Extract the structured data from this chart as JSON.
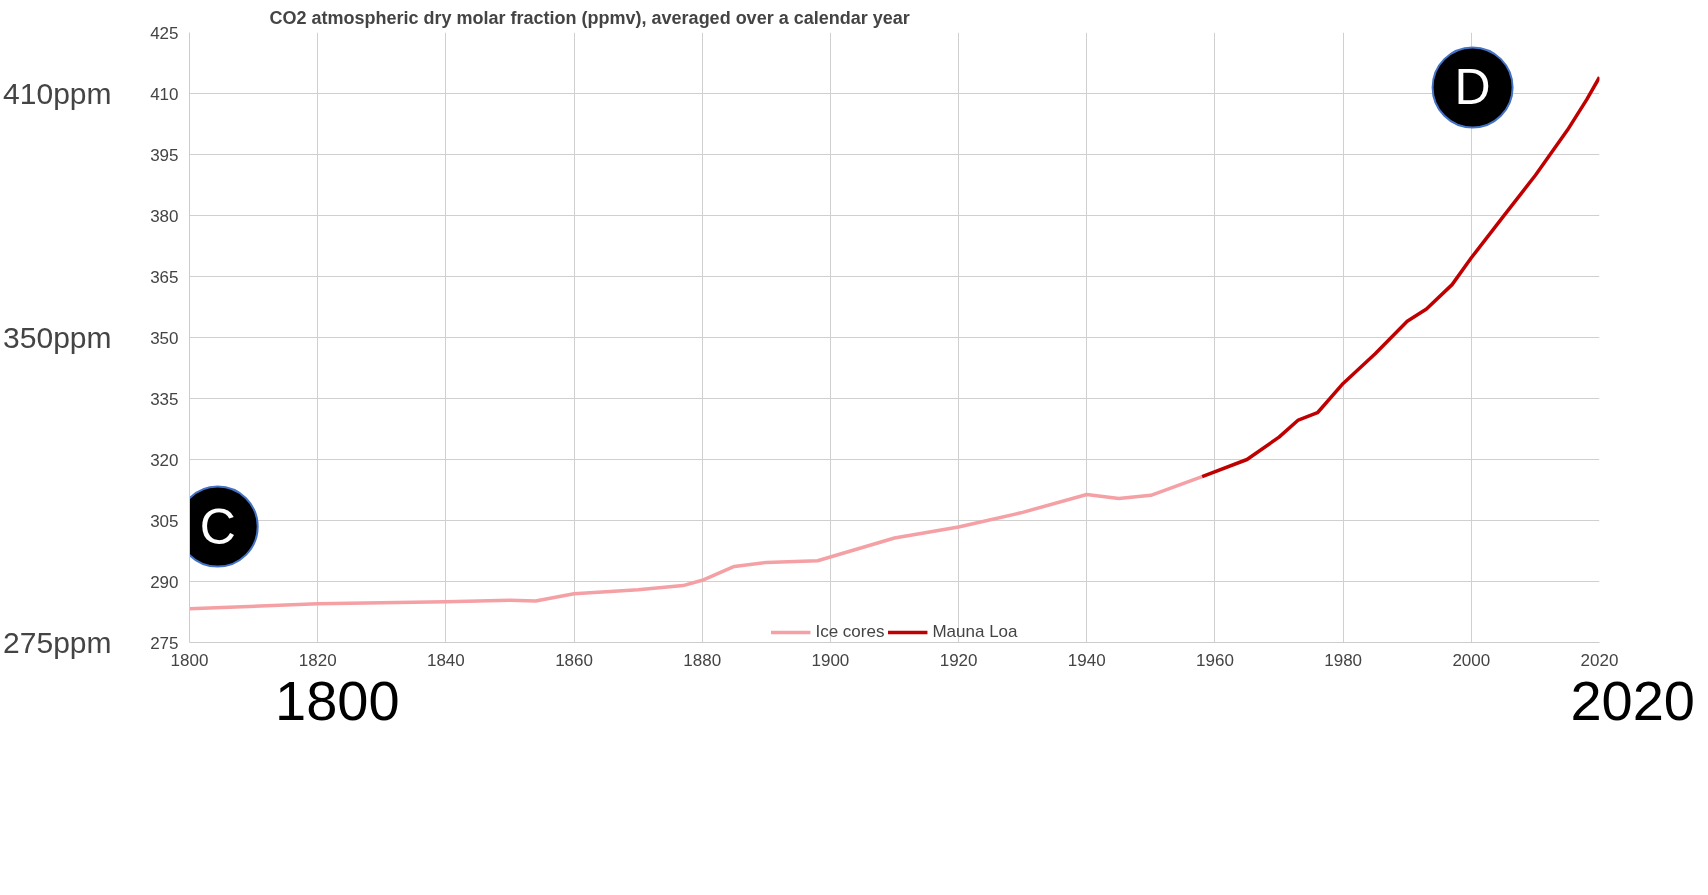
{
  "chart_data": {
    "type": "line",
    "title": "CO2 atmospheric dry molar fraction (ppmv), averaged over a calendar year",
    "xlim": [
      1800,
      2020
    ],
    "xticks": [
      1800,
      1820,
      1840,
      1860,
      1880,
      1900,
      1920,
      1940,
      1960,
      1980,
      2000,
      2020
    ],
    "ylim": [
      275,
      425
    ],
    "yticks": [
      275,
      290,
      305,
      320,
      335,
      350,
      365,
      380,
      395,
      410,
      425
    ],
    "y2lim": [
      275,
      425
    ],
    "y2ticks": [
      {
        "value": 410,
        "label": "410ppm"
      },
      {
        "value": 350,
        "label": "350ppm"
      },
      {
        "value": 275,
        "label": "275ppm"
      }
    ],
    "series": [
      {
        "name": "Ice cores",
        "color": "#f4a0a4",
        "x": [
          1800,
          1820,
          1840,
          1850,
          1854,
          1860,
          1870,
          1877,
          1880,
          1885,
          1890,
          1898,
          1910,
          1920,
          1930,
          1940,
          1945,
          1950,
          1958
        ],
        "values": [
          283.3,
          284.5,
          285,
          285.4,
          285.2,
          287,
          288,
          289,
          290.3,
          293.7,
          294.7,
          295.1,
          300.7,
          303.4,
          307,
          311.4,
          310.4,
          311.2,
          315.8
        ]
      },
      {
        "name": "Mauna Loa",
        "color": "#c00000",
        "x": [
          1958,
          1965,
          1970,
          1973,
          1976,
          1980,
          1985,
          1990,
          1993,
          1997,
          2000,
          2005,
          2010,
          2015,
          2018,
          2020
        ],
        "values": [
          315.8,
          320,
          325.5,
          329.7,
          331.5,
          338.7,
          346,
          354,
          357,
          363,
          369.6,
          379.8,
          389.9,
          401,
          408.5,
          414
        ]
      }
    ],
    "annotations": [
      "C",
      "D",
      "1800",
      "2020"
    ],
    "grid": true,
    "legend": "bottom",
    "line_style": "solid",
    "marker": "none"
  }
}
